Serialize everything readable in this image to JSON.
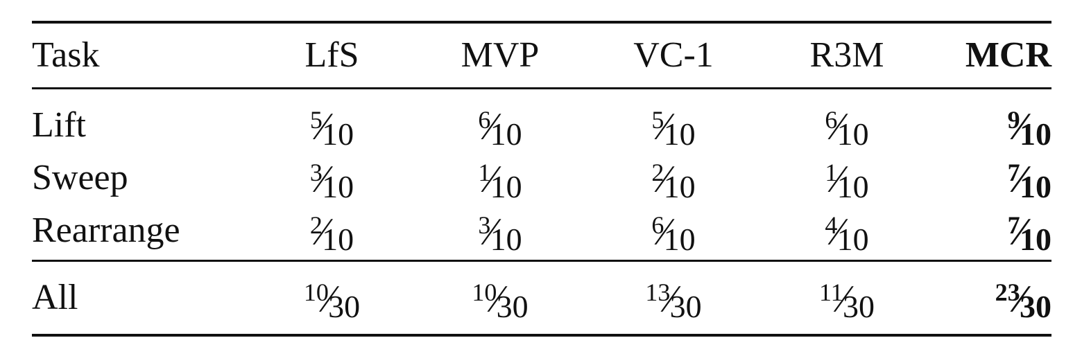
{
  "header": {
    "task": "Task",
    "methods": [
      "LfS",
      "MVP",
      "VC-1",
      "R3M",
      "MCR"
    ]
  },
  "rows": [
    {
      "task": "Lift",
      "values": [
        {
          "num": "5",
          "den": "10"
        },
        {
          "num": "6",
          "den": "10"
        },
        {
          "num": "5",
          "den": "10"
        },
        {
          "num": "6",
          "den": "10"
        },
        {
          "num": "9",
          "den": "10"
        }
      ]
    },
    {
      "task": "Sweep",
      "values": [
        {
          "num": "3",
          "den": "10"
        },
        {
          "num": "1",
          "den": "10"
        },
        {
          "num": "2",
          "den": "10"
        },
        {
          "num": "1",
          "den": "10"
        },
        {
          "num": "7",
          "den": "10"
        }
      ]
    },
    {
      "task": "Rearrange",
      "values": [
        {
          "num": "2",
          "den": "10"
        },
        {
          "num": "3",
          "den": "10"
        },
        {
          "num": "6",
          "den": "10"
        },
        {
          "num": "4",
          "den": "10"
        },
        {
          "num": "7",
          "den": "10"
        }
      ]
    }
  ],
  "total": {
    "task": "All",
    "values": [
      {
        "num": "10",
        "den": "30"
      },
      {
        "num": "10",
        "den": "30"
      },
      {
        "num": "13",
        "den": "30"
      },
      {
        "num": "11",
        "den": "30"
      },
      {
        "num": "23",
        "den": "30"
      }
    ]
  },
  "slash": "⁄",
  "highlight_column": "MCR"
}
